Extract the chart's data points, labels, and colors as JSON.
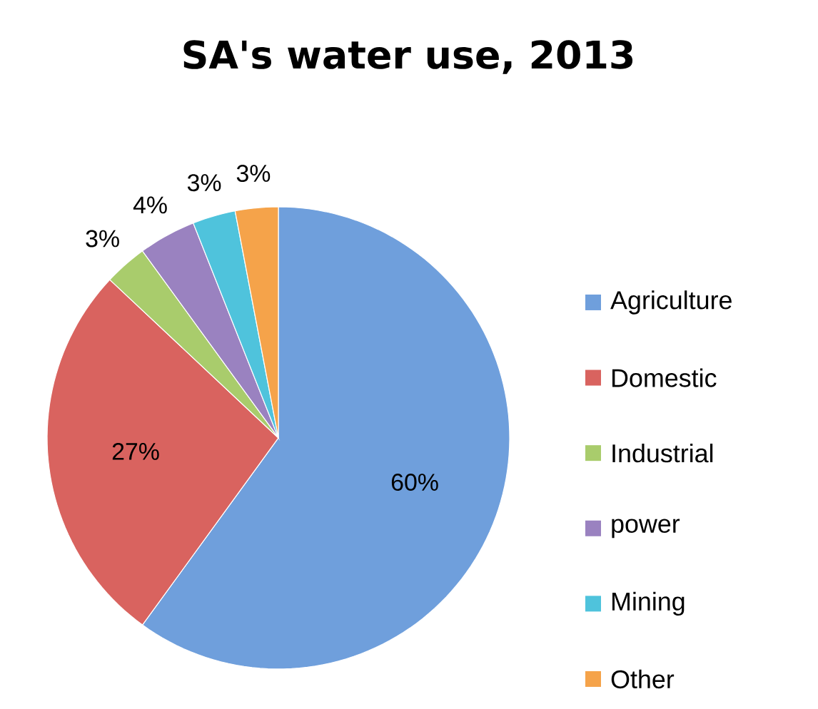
{
  "chart_data": {
    "type": "pie",
    "title": "SA's water use, 2013",
    "categories": [
      "Agriculture",
      "Domestic",
      "Industrial",
      "power",
      "Mining",
      "Other"
    ],
    "values": [
      60,
      27,
      3,
      4,
      3,
      3
    ],
    "value_labels": [
      "60%",
      "27%",
      "3%",
      "4%",
      "3%",
      "3%"
    ],
    "colors": [
      "#6f9fdc",
      "#d9635f",
      "#a9cc6c",
      "#9a82c0",
      "#4fc3dc",
      "#f5a34a"
    ],
    "legend": "right"
  }
}
